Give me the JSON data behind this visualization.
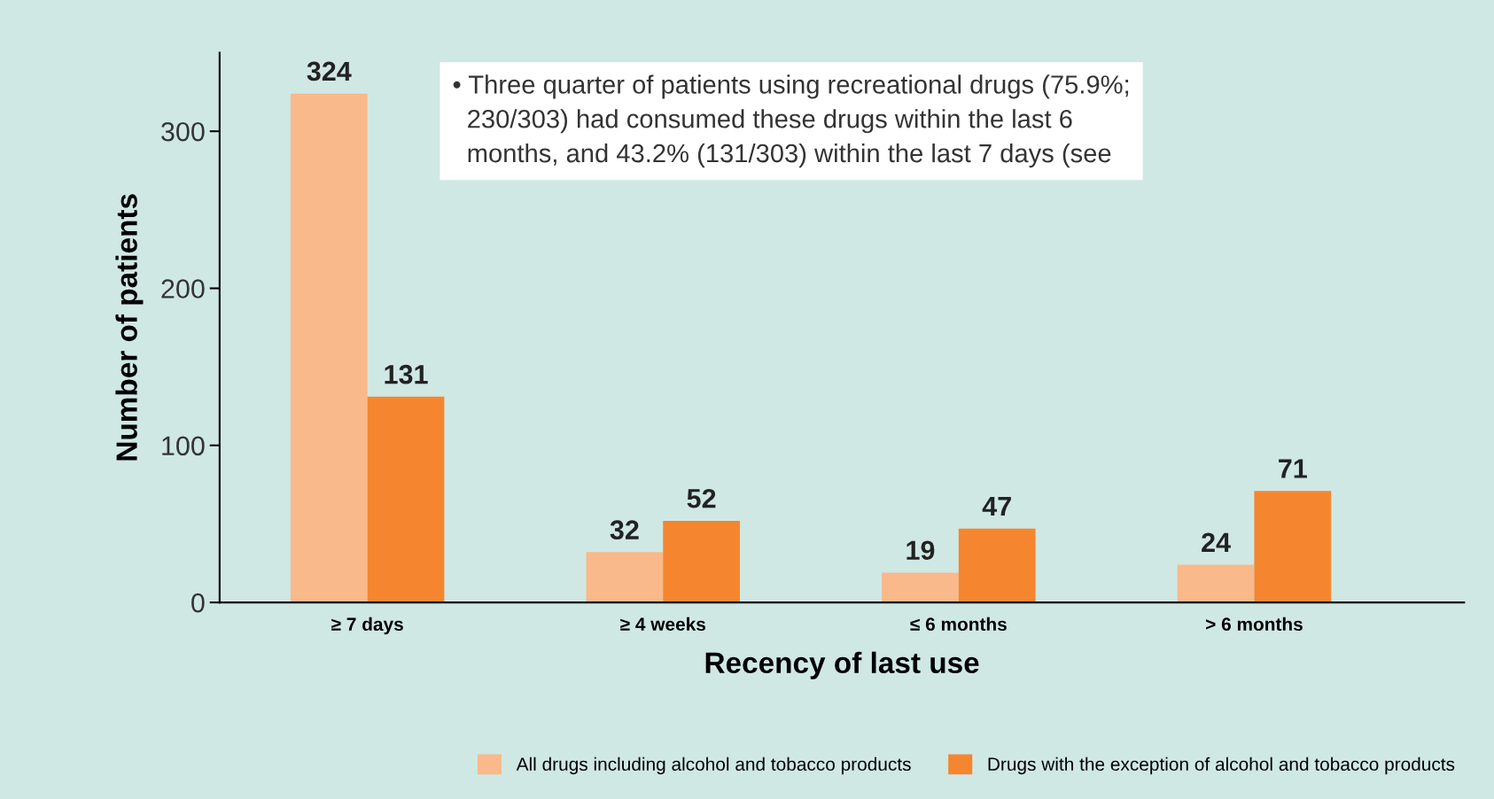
{
  "chart_data": {
    "type": "bar",
    "xlabel": "Recency of last use",
    "ylabel": "Number of patients",
    "categories": [
      "≥ 7 days",
      "≥ 4 weeks",
      "≤ 6 months",
      "> 6 months"
    ],
    "series": [
      {
        "name": "All drugs including alcohol and tobacco products",
        "color": "#f9b98a",
        "values": [
          324,
          32,
          19,
          24
        ]
      },
      {
        "name": "Drugs with the exception of alcohol and tobacco products",
        "color": "#f5862f",
        "values": [
          131,
          52,
          47,
          71
        ]
      }
    ],
    "ylim": [
      0,
      350
    ],
    "yticks": [
      0,
      100,
      200,
      300
    ],
    "grid": false,
    "legend": "bottom",
    "data_labels": true,
    "annotations": [
      "• Three quarter of patients using recreational drugs (75.9%;\n  230/303) had consumed these drugs within the last 6\n  months, and 43.2% (131/303) within the last 7 days (see"
    ]
  }
}
